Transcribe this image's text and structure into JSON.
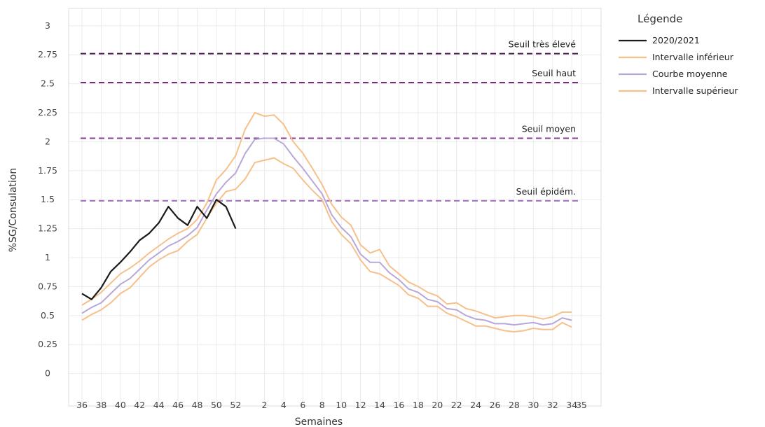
{
  "chart_data": {
    "type": "line",
    "xlabel": "Semaines",
    "ylabel": "%SG/Consulation",
    "ylim": [
      -0.28,
      3.15
    ],
    "yticks": [
      0,
      0.25,
      0.5,
      0.75,
      1,
      1.25,
      1.5,
      1.75,
      2,
      2.25,
      2.5,
      2.75,
      3
    ],
    "ytick_labels": [
      "0",
      "0.25",
      "0.5",
      "0.75",
      "1",
      "1.25",
      "1.5",
      "1.75",
      "2",
      "2.25",
      "2.5",
      "2.75",
      "3"
    ],
    "x_categories": [
      36,
      37,
      38,
      39,
      40,
      41,
      42,
      43,
      44,
      45,
      46,
      47,
      48,
      49,
      50,
      51,
      52,
      53,
      1,
      2,
      3,
      4,
      5,
      6,
      7,
      8,
      9,
      10,
      11,
      12,
      13,
      14,
      15,
      16,
      17,
      18,
      19,
      20,
      21,
      22,
      23,
      24,
      25,
      26,
      27,
      28,
      29,
      30,
      31,
      32,
      33,
      34,
      35
    ],
    "xtick_labels": [
      "36",
      "38",
      "40",
      "42",
      "44",
      "46",
      "48",
      "50",
      "52",
      "2",
      "4",
      "6",
      "8",
      "10",
      "12",
      "14",
      "16",
      "18",
      "20",
      "22",
      "24",
      "26",
      "28",
      "30",
      "32",
      "34",
      "35"
    ],
    "grid": true,
    "legend": {
      "title": "Légende",
      "position": "right"
    },
    "series": [
      {
        "name": "2020/2021",
        "color": "#1a1a1a",
        "values": [
          0.69,
          0.64,
          0.74,
          0.88,
          0.96,
          1.05,
          1.15,
          1.21,
          1.3,
          1.44,
          1.34,
          1.28,
          1.44,
          1.34,
          1.5,
          1.44,
          1.25
        ]
      },
      {
        "name": "Intervalle inférieur",
        "color": "#f6c08a",
        "values": [
          0.46,
          0.51,
          0.55,
          0.61,
          0.69,
          0.74,
          0.83,
          0.92,
          0.98,
          1.03,
          1.06,
          1.14,
          1.2,
          1.34,
          1.47,
          1.57,
          1.59,
          1.68,
          1.82,
          1.84,
          1.86,
          1.81,
          1.77,
          1.67,
          1.58,
          1.5,
          1.31,
          1.2,
          1.12,
          0.98,
          0.88,
          0.86,
          0.81,
          0.76,
          0.68,
          0.65,
          0.58,
          0.58,
          0.52,
          0.49,
          0.45,
          0.41,
          0.41,
          0.39,
          0.37,
          0.36,
          0.37,
          0.39,
          0.38,
          0.38,
          0.44,
          0.4
        ]
      },
      {
        "name": "Courbe moyenne",
        "color": "#b8a8d8",
        "values": [
          0.52,
          0.57,
          0.61,
          0.69,
          0.77,
          0.82,
          0.9,
          0.98,
          1.04,
          1.1,
          1.14,
          1.19,
          1.26,
          1.41,
          1.55,
          1.65,
          1.73,
          1.9,
          2.02,
          2.03,
          2.03,
          1.98,
          1.87,
          1.77,
          1.66,
          1.55,
          1.37,
          1.26,
          1.18,
          1.03,
          0.96,
          0.96,
          0.87,
          0.81,
          0.73,
          0.7,
          0.64,
          0.62,
          0.56,
          0.55,
          0.5,
          0.47,
          0.46,
          0.43,
          0.43,
          0.42,
          0.43,
          0.44,
          0.42,
          0.43,
          0.48,
          0.46
        ]
      },
      {
        "name": "Intervalle supérieur",
        "color": "#f6c08a",
        "values": [
          0.59,
          0.64,
          0.7,
          0.78,
          0.86,
          0.91,
          0.97,
          1.04,
          1.1,
          1.16,
          1.21,
          1.25,
          1.33,
          1.47,
          1.67,
          1.76,
          1.88,
          2.11,
          2.25,
          2.22,
          2.23,
          2.15,
          2.0,
          1.9,
          1.77,
          1.63,
          1.46,
          1.35,
          1.28,
          1.11,
          1.04,
          1.07,
          0.93,
          0.86,
          0.79,
          0.75,
          0.7,
          0.67,
          0.6,
          0.61,
          0.56,
          0.54,
          0.51,
          0.48,
          0.49,
          0.5,
          0.5,
          0.49,
          0.47,
          0.49,
          0.53,
          0.53
        ]
      }
    ],
    "thresholds": [
      {
        "label": "Seuil très élevé",
        "value": 2.76,
        "color": "#4a1850"
      },
      {
        "label": "Seuil haut",
        "value": 2.51,
        "color": "#7a2a7a"
      },
      {
        "label": "Seuil moyen",
        "value": 2.03,
        "color": "#8a3e9a"
      },
      {
        "label": "Seuil épidém.",
        "value": 1.49,
        "color": "#a070c0"
      }
    ]
  }
}
